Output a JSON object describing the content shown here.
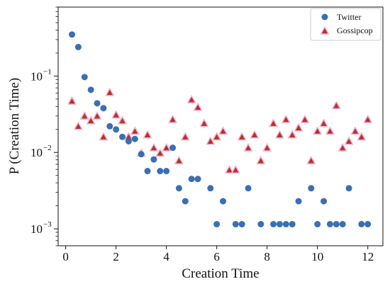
{
  "chart_data": {
    "type": "scatter",
    "xlabel": "Creation Time",
    "ylabel": "P (Creation Time)",
    "xlim": [
      -0.3,
      12.6
    ],
    "ylim": [
      0.0006,
      0.8
    ],
    "y_scale": "log",
    "grid": false,
    "legend_position": "top-right",
    "x_ticks": [
      0,
      2,
      4,
      6,
      8,
      10,
      12
    ],
    "x_tick_labels": [
      "0",
      "2",
      "4",
      "6",
      "8",
      "10",
      "12"
    ],
    "y_major_ticks": [
      0.001,
      0.01,
      0.1
    ],
    "y_tick_labels": [
      "10",
      "10",
      "10"
    ],
    "y_tick_exponents": [
      "−3",
      "−2",
      "−1"
    ],
    "series": [
      {
        "name": "Twitter",
        "marker": "circle",
        "color": "#3a6fb0",
        "x": [
          0.25,
          0.5,
          0.75,
          1.0,
          1.25,
          1.5,
          1.75,
          2.0,
          2.25,
          2.5,
          2.75,
          3.0,
          3.25,
          3.5,
          3.75,
          4.0,
          4.25,
          4.5,
          4.75,
          5.0,
          5.25,
          5.75,
          6.0,
          6.25,
          6.75,
          7.0,
          7.25,
          7.75,
          8.25,
          8.5,
          8.75,
          9.0,
          9.25,
          9.75,
          10.0,
          10.25,
          10.5,
          10.75,
          11.0,
          11.25,
          11.75,
          12.0
        ],
        "y": [
          0.35,
          0.24,
          0.097,
          0.066,
          0.044,
          0.038,
          0.022,
          0.02,
          0.016,
          0.014,
          0.015,
          0.0095,
          0.0057,
          0.0081,
          0.0057,
          0.0057,
          0.0115,
          0.0034,
          0.0023,
          0.0045,
          0.0045,
          0.0034,
          0.00115,
          0.0023,
          0.00115,
          0.00115,
          0.0034,
          0.00115,
          0.00115,
          0.00115,
          0.00115,
          0.00115,
          0.0023,
          0.0034,
          0.00115,
          0.0023,
          0.00115,
          0.00115,
          0.00115,
          0.0034,
          0.00115,
          0.00115
        ]
      },
      {
        "name": "Gossipcop",
        "marker": "triangle",
        "color": "#b83220",
        "x": [
          0.25,
          0.5,
          0.75,
          1.0,
          1.25,
          1.5,
          1.75,
          2.0,
          2.25,
          2.5,
          2.75,
          3.0,
          3.25,
          3.5,
          3.75,
          4.0,
          4.25,
          4.5,
          4.75,
          5.0,
          5.25,
          5.5,
          5.75,
          6.0,
          6.25,
          6.5,
          6.75,
          7.0,
          7.25,
          7.5,
          7.75,
          8.0,
          8.25,
          8.5,
          8.75,
          9.0,
          9.25,
          9.5,
          9.75,
          10.0,
          10.25,
          10.5,
          10.75,
          11.0,
          11.25,
          11.5,
          11.75,
          12.0
        ],
        "y": [
          0.047,
          0.022,
          0.03,
          0.026,
          0.03,
          0.016,
          0.061,
          0.031,
          0.026,
          0.016,
          0.019,
          0.0098,
          0.017,
          0.0115,
          0.0098,
          0.0115,
          0.027,
          0.0078,
          0.016,
          0.049,
          0.039,
          0.024,
          0.014,
          0.016,
          0.019,
          0.0059,
          0.0059,
          0.016,
          0.0115,
          0.017,
          0.0078,
          0.0115,
          0.024,
          0.017,
          0.027,
          0.017,
          0.021,
          0.027,
          0.0078,
          0.019,
          0.024,
          0.019,
          0.041,
          0.0115,
          0.014,
          0.019,
          0.016,
          0.027
        ]
      }
    ]
  }
}
